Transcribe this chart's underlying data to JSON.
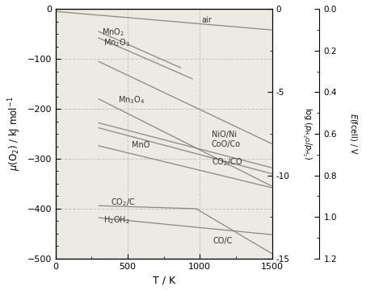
{
  "xlabel": "T / K",
  "ylabel": "μ(O₂) / kJ mol⁻¹",
  "ylabel2": "log (p(H₂O)/p(H₂))",
  "ylabel3": "E(fcell) / V",
  "xlim": [
    0,
    1500
  ],
  "ylim": [
    -500,
    0
  ],
  "yticks": [
    0,
    -100,
    -200,
    -300,
    -400,
    -500
  ],
  "xticks": [
    0,
    500,
    1000,
    1500
  ],
  "y2ticks": [
    0,
    -5,
    -10,
    -15
  ],
  "y3ticks": [
    0.0,
    0.2,
    0.4,
    0.6,
    0.8,
    1.0,
    1.2
  ],
  "bg_color": "#ede9e3",
  "line_color": "#888880",
  "annotation_color": "#333333",
  "grid_color": "#c8c4bc",
  "lines": {
    "MnO2": {
      "T": [
        298,
        870
      ],
      "mu": [
        -45,
        -118
      ]
    },
    "Mn2O3": {
      "T": [
        298,
        950
      ],
      "mu": [
        -58,
        -140
      ]
    },
    "Mn3O4": {
      "T": [
        298,
        1500
      ],
      "mu": [
        -105,
        -270
      ]
    },
    "MnO": {
      "T": [
        298,
        1500
      ],
      "mu": [
        -180,
        -355
      ]
    },
    "NiO": {
      "T": [
        298,
        1500
      ],
      "mu": [
        -228,
        -318
      ]
    },
    "CoO": {
      "T": [
        298,
        1500
      ],
      "mu": [
        -238,
        -330
      ]
    },
    "CO2CO": {
      "T": [
        298,
        1500
      ],
      "mu": [
        -274,
        -358
      ]
    },
    "CO2C": {
      "T": [
        298,
        975
      ],
      "mu": [
        -394,
        -400
      ]
    },
    "H2OH2": {
      "T": [
        298,
        1500
      ],
      "mu": [
        -418,
        -452
      ]
    },
    "COC": {
      "T": [
        975,
        1500
      ],
      "mu": [
        -400,
        -490
      ]
    },
    "air": {
      "T": [
        0,
        1500
      ],
      "mu": [
        -5,
        -42
      ]
    }
  }
}
